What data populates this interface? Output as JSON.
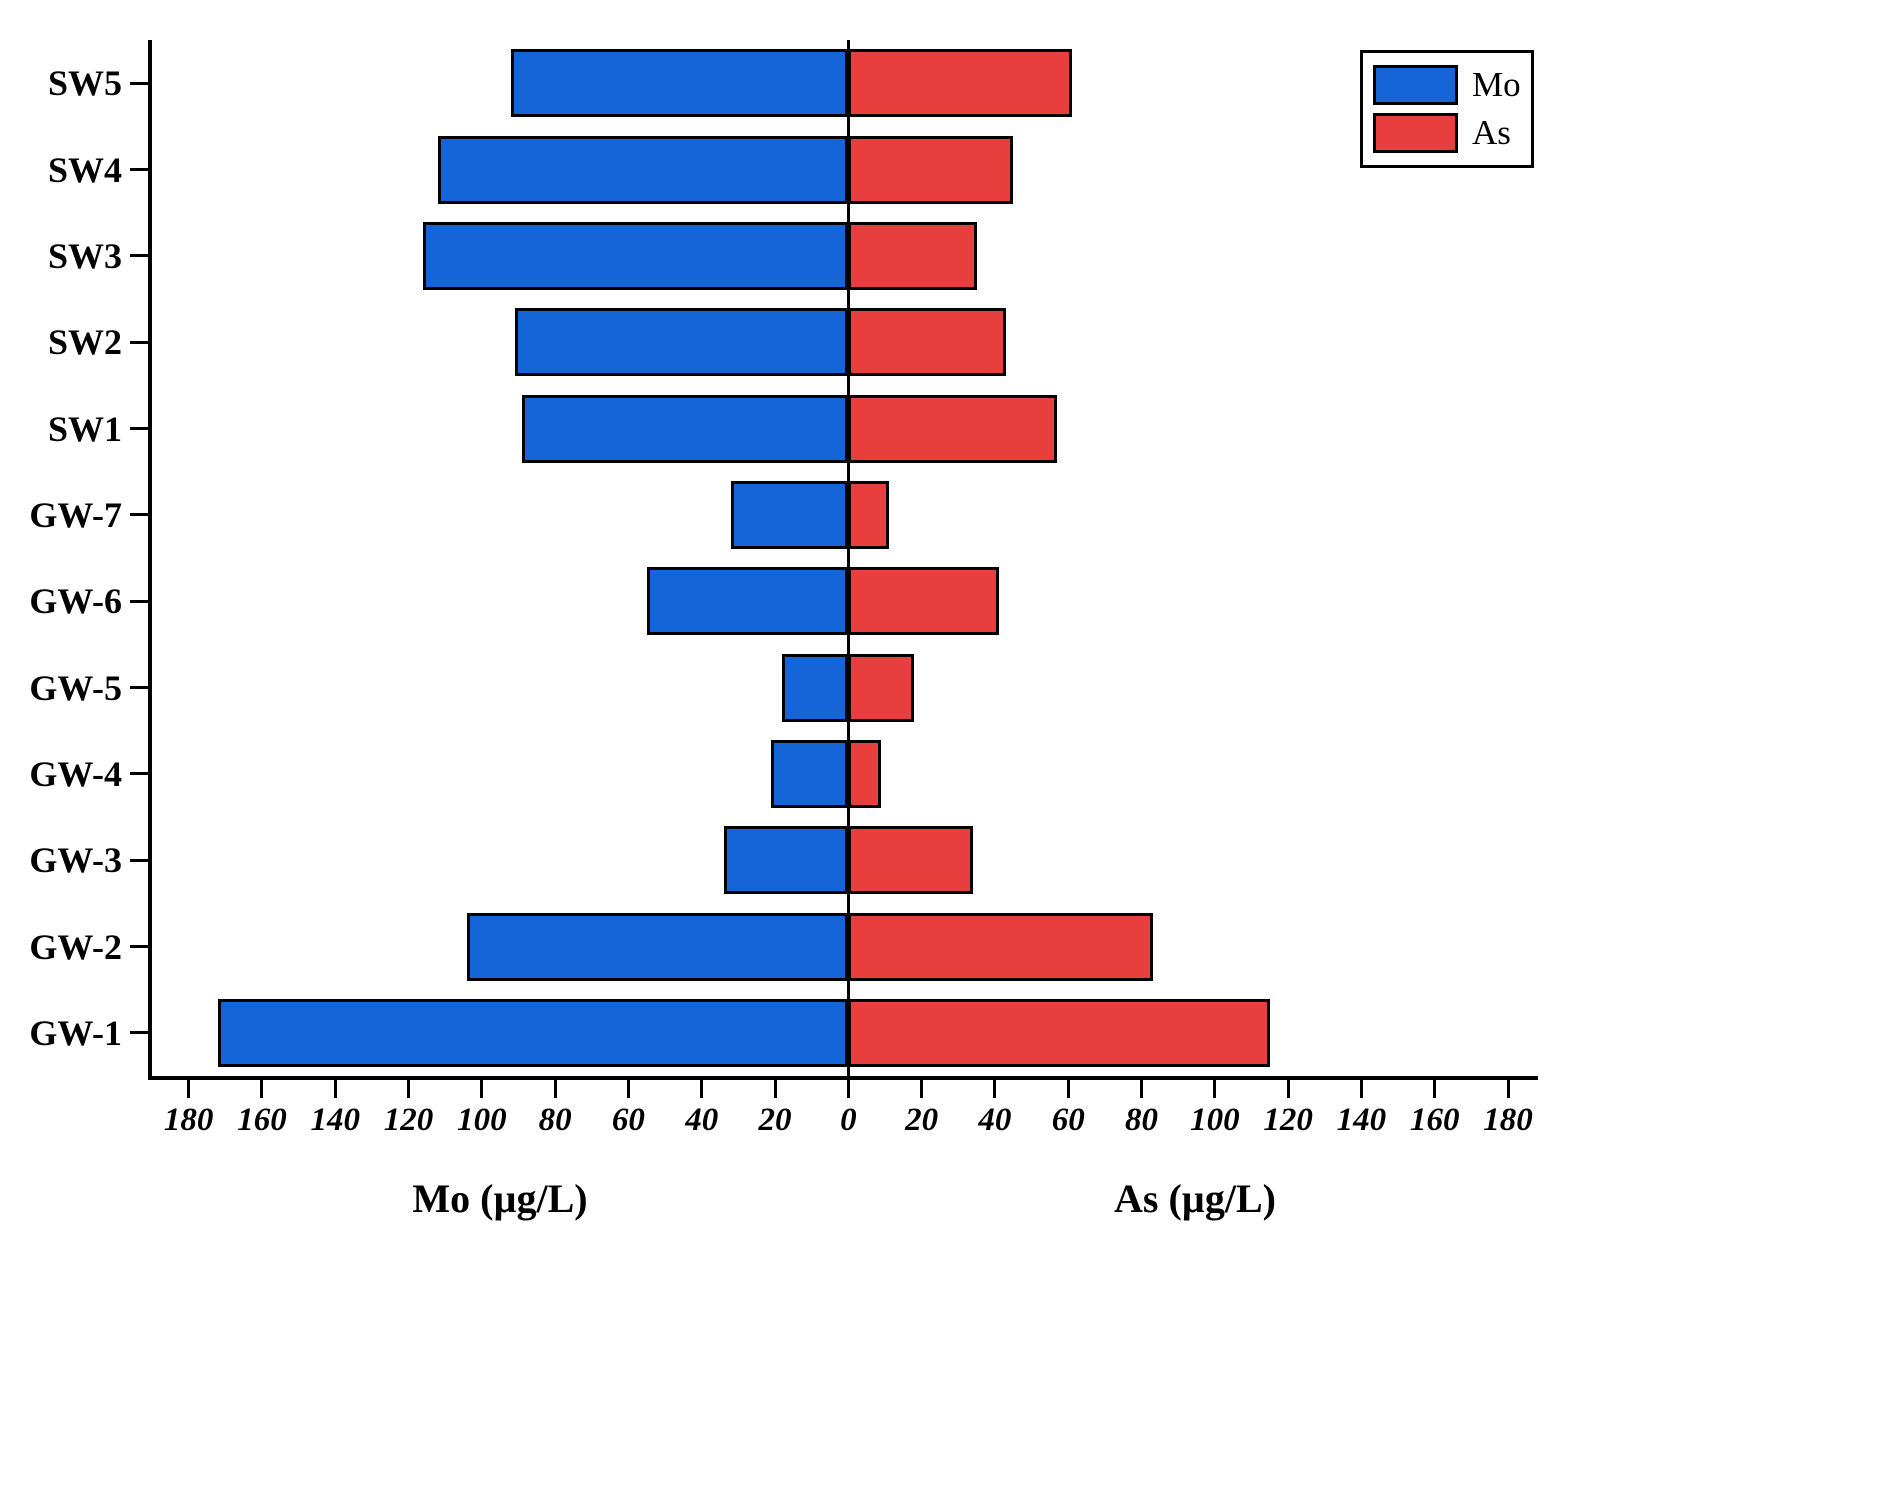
{
  "chart_data": {
    "type": "bar",
    "variant": "diverging-horizontal",
    "title": "",
    "categories": [
      "SW5",
      "SW4",
      "SW3",
      "SW2",
      "SW1",
      "GW-7",
      "GW-6",
      "GW-5",
      "GW-4",
      "GW-3",
      "GW-2",
      "GW-1"
    ],
    "series": [
      {
        "name": "Mo",
        "side": "left",
        "color": "#1565d8",
        "values": [
          92,
          112,
          116,
          91,
          89,
          32,
          55,
          18,
          21,
          34,
          104,
          172
        ]
      },
      {
        "name": "As",
        "side": "right",
        "color": "#e83e3e",
        "values": [
          61,
          45,
          35,
          43,
          57,
          11,
          41,
          18,
          9,
          34,
          83,
          115
        ]
      }
    ],
    "xlabel_left": "Mo (µg/L)",
    "xlabel_right": "As (µg/L)",
    "xlim": [
      -190,
      186
    ],
    "x_ticks": [
      -180,
      -160,
      -140,
      -120,
      -100,
      -80,
      -60,
      -40,
      -20,
      0,
      20,
      40,
      60,
      80,
      100,
      120,
      140,
      160,
      180
    ],
    "x_tick_label_style": "absolute-value",
    "bar_border_color": "#000000",
    "axis_color": "#000000",
    "background_color": "#ffffff",
    "grid": false,
    "legend_position": "top-right",
    "legend_entries": [
      {
        "label": "Mo",
        "color": "#1565d8"
      },
      {
        "label": "As",
        "color": "#e83e3e"
      }
    ]
  }
}
